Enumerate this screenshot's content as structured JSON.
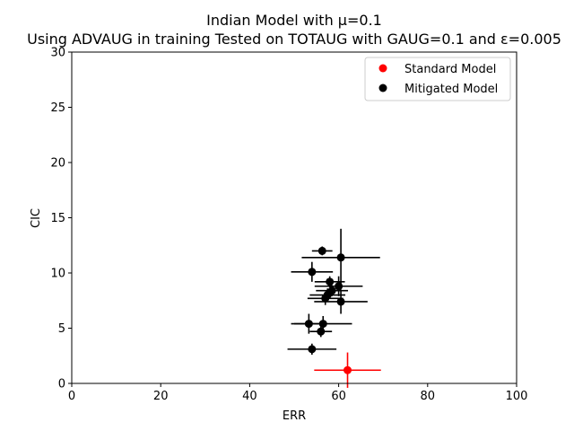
{
  "chart_data": {
    "type": "scatter",
    "title_lines": [
      "Indian Model with μ=0.1",
      "Using ADVAUG in training Tested on TOTAUG with GAUG=0.1 and ε=0.005"
    ],
    "xlabel": "ERR",
    "ylabel": "CIC",
    "xlim": [
      0,
      100
    ],
    "ylim": [
      0,
      30
    ],
    "xticks": [
      0,
      20,
      40,
      60,
      80,
      100
    ],
    "yticks": [
      0,
      5,
      10,
      15,
      20,
      25,
      30
    ],
    "xtick_labels": [
      "0",
      "20",
      "40",
      "60",
      "80",
      "100"
    ],
    "ytick_labels": [
      "0",
      "5",
      "10",
      "15",
      "20",
      "25",
      "30"
    ],
    "grid": false,
    "legend_position": "top-right",
    "series": [
      {
        "name": "Standard Model",
        "color": "#ff0000",
        "points": [
          {
            "x": 62.0,
            "y": 1.2,
            "xerr": 7.5,
            "yerr": 1.6
          }
        ]
      },
      {
        "name": "Mitigated Model",
        "color": "#000000",
        "points": [
          {
            "x": 56.3,
            "y": 12.0,
            "xerr": 2.3,
            "yerr": 0.4
          },
          {
            "x": 60.5,
            "y": 11.4,
            "xerr": 8.8,
            "yerr": 2.6
          },
          {
            "x": 54.0,
            "y": 10.1,
            "xerr": 4.7,
            "yerr": 0.9
          },
          {
            "x": 58.0,
            "y": 9.2,
            "xerr": 3.4,
            "yerr": 0.5
          },
          {
            "x": 60.0,
            "y": 8.8,
            "xerr": 5.4,
            "yerr": 0.9
          },
          {
            "x": 58.5,
            "y": 8.4,
            "xerr": 3.6,
            "yerr": 0.5
          },
          {
            "x": 57.5,
            "y": 8.0,
            "xerr": 4.0,
            "yerr": 0.6
          },
          {
            "x": 57.0,
            "y": 7.7,
            "xerr": 4.0,
            "yerr": 0.6
          },
          {
            "x": 60.5,
            "y": 7.4,
            "xerr": 6.0,
            "yerr": 1.1
          },
          {
            "x": 53.3,
            "y": 5.4,
            "xerr": 4.0,
            "yerr": 0.9
          },
          {
            "x": 56.5,
            "y": 5.4,
            "xerr": 6.5,
            "yerr": 0.7
          },
          {
            "x": 56.0,
            "y": 4.7,
            "xerr": 2.5,
            "yerr": 0.5
          },
          {
            "x": 54.0,
            "y": 3.1,
            "xerr": 5.5,
            "yerr": 0.5
          }
        ]
      }
    ]
  }
}
